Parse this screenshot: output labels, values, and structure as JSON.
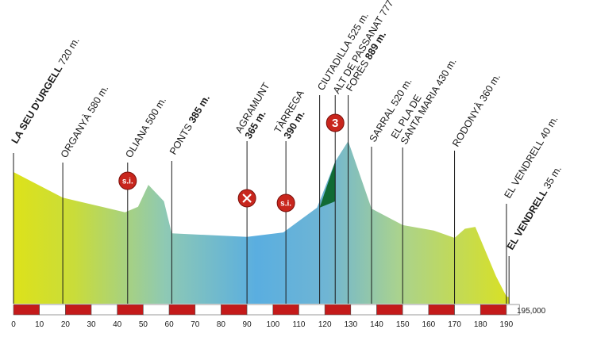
{
  "chart_data": {
    "type": "area",
    "title": "",
    "xlabel": "",
    "ylabel": "",
    "total_distance_label": "195,000",
    "x_ticks": [
      0,
      10,
      20,
      30,
      40,
      50,
      60,
      70,
      80,
      90,
      100,
      110,
      120,
      130,
      140,
      150,
      160,
      170,
      180,
      190
    ],
    "xlim": [
      0,
      195
    ],
    "ylim": [
      0,
      1000
    ],
    "colors": {
      "start": "#dde21a",
      "middle": "#5aaee0",
      "end": "#dde21a",
      "climb": "#116b35",
      "icon": "#c8261d",
      "bar_red": "#c41a1a"
    },
    "profile": [
      {
        "km": 0,
        "alt": 720
      },
      {
        "km": 19,
        "alt": 580
      },
      {
        "km": 43,
        "alt": 500
      },
      {
        "km": 48,
        "alt": 530
      },
      {
        "km": 52,
        "alt": 650
      },
      {
        "km": 58,
        "alt": 560
      },
      {
        "km": 61,
        "alt": 385
      },
      {
        "km": 90,
        "alt": 365
      },
      {
        "km": 104,
        "alt": 390
      },
      {
        "km": 117,
        "alt": 525
      },
      {
        "km": 124,
        "alt": 777
      },
      {
        "km": 129,
        "alt": 889
      },
      {
        "km": 138,
        "alt": 520
      },
      {
        "km": 150,
        "alt": 430
      },
      {
        "km": 162,
        "alt": 400
      },
      {
        "km": 170,
        "alt": 360
      },
      {
        "km": 174,
        "alt": 410
      },
      {
        "km": 178,
        "alt": 420
      },
      {
        "km": 186,
        "alt": 150
      },
      {
        "km": 190,
        "alt": 40
      },
      {
        "km": 191,
        "alt": 35
      }
    ],
    "climb": {
      "from_km": 118,
      "to_km": 124
    },
    "points": [
      {
        "km": 0,
        "alt": 720,
        "name": "LA SEU D'URGELL",
        "elev": "720 m.",
        "bold_name": true
      },
      {
        "km": 19,
        "alt": 580,
        "name": "ORGANYÀ",
        "elev": "580 m.",
        "bold_name": false
      },
      {
        "km": 44,
        "alt": 500,
        "name": "OLIANA",
        "elev": "500 m.",
        "bold_name": false
      },
      {
        "km": 61,
        "alt": 385,
        "name": "PONTS",
        "elev": "385 m.",
        "bold_name": false
      },
      {
        "km": 90,
        "alt": 365,
        "name": "AGRAMUNT",
        "elev": "365 m.",
        "bold_name": false
      },
      {
        "km": 105,
        "alt": 390,
        "name": "TÀRREGA",
        "elev": "390 m.",
        "bold_name": false
      },
      {
        "km": 118,
        "alt": 525,
        "name": "CIUTADILLA",
        "elev": "525 m.",
        "bold_name": false
      },
      {
        "km": 124,
        "alt": 777,
        "name": "ALT DE PASSANAT",
        "elev": "777 m.",
        "bold_name": false
      },
      {
        "km": 129,
        "alt": 889,
        "name": "FORÈS",
        "elev": "889 m.",
        "bold_name": false
      },
      {
        "km": 138,
        "alt": 520,
        "name": "SARRAL",
        "elev": "520 m.",
        "bold_name": false
      },
      {
        "km": 150,
        "alt": 430,
        "name": "EL PLA DE|SANTA MARIA",
        "elev": "430 m.",
        "bold_name": false
      },
      {
        "km": 170,
        "alt": 360,
        "name": "RODONYÀ",
        "elev": "360 m.",
        "bold_name": false
      },
      {
        "km": 190,
        "alt": 40,
        "name": "EL VENDRELL",
        "elev": "40 m.",
        "bold_name": false
      },
      {
        "km": 191,
        "alt": 35,
        "name": "EL VENDRELL",
        "elev": "35 m.",
        "bold_name": true
      }
    ],
    "markers": [
      {
        "km": 44,
        "type": "sprint",
        "label": "s.i."
      },
      {
        "km": 90,
        "type": "feed",
        "label": ""
      },
      {
        "km": 105,
        "type": "sprint",
        "label": "s.i."
      },
      {
        "km": 124,
        "type": "climb",
        "label": "3"
      }
    ]
  }
}
